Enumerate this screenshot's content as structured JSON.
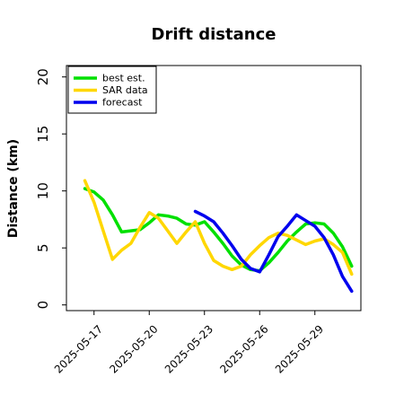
{
  "chart_data": {
    "type": "line",
    "title": "Drift distance",
    "xlabel": "",
    "ylabel": "Distance (km)",
    "ylim": [
      -0.5,
      21
    ],
    "xlim": [
      "2025-05-15T12:00",
      "2025-05-31T12:00"
    ],
    "yticks": [
      0,
      5,
      10,
      15,
      20
    ],
    "xticks": [
      "2025-05-17",
      "2025-05-20",
      "2025-05-23",
      "2025-05-26",
      "2025-05-29"
    ],
    "grid": false,
    "legend_position": "top-left",
    "series": [
      {
        "name": "best est.",
        "color": "#00e000",
        "x": [
          "2025-05-16T12:00",
          "2025-05-17T00:00",
          "2025-05-17T12:00",
          "2025-05-18T00:00",
          "2025-05-18T12:00",
          "2025-05-19T00:00",
          "2025-05-19T12:00",
          "2025-05-20T00:00",
          "2025-05-20T12:00",
          "2025-05-21T00:00",
          "2025-05-21T12:00",
          "2025-05-22T00:00",
          "2025-05-22T12:00",
          "2025-05-23T00:00",
          "2025-05-23T12:00",
          "2025-05-24T00:00",
          "2025-05-24T12:00",
          "2025-05-25T00:00",
          "2025-05-25T12:00",
          "2025-05-26T00:00",
          "2025-05-26T12:00",
          "2025-05-27T00:00",
          "2025-05-27T12:00",
          "2025-05-28T00:00",
          "2025-05-28T12:00",
          "2025-05-29T00:00",
          "2025-05-29T12:00",
          "2025-05-30T00:00",
          "2025-05-30T12:00",
          "2025-05-31T00:00"
        ],
        "values": [
          10.2,
          9.9,
          9.2,
          7.9,
          6.4,
          6.5,
          6.6,
          7.2,
          7.9,
          7.8,
          7.6,
          7.1,
          7.0,
          7.3,
          6.4,
          5.4,
          4.3,
          3.5,
          3.1,
          3.0,
          3.7,
          4.6,
          5.6,
          6.4,
          7.1,
          7.2,
          7.1,
          6.3,
          5.1,
          3.4
        ]
      },
      {
        "name": "SAR data",
        "color": "#ffd700",
        "x": [
          "2025-05-16T12:00",
          "2025-05-17T00:00",
          "2025-05-17T12:00",
          "2025-05-18T00:00",
          "2025-05-18T12:00",
          "2025-05-19T00:00",
          "2025-05-19T12:00",
          "2025-05-20T00:00",
          "2025-05-20T12:00",
          "2025-05-21T00:00",
          "2025-05-21T12:00",
          "2025-05-22T00:00",
          "2025-05-22T12:00",
          "2025-05-23T00:00",
          "2025-05-23T12:00",
          "2025-05-24T00:00",
          "2025-05-24T12:00",
          "2025-05-25T00:00",
          "2025-05-25T12:00",
          "2025-05-26T00:00",
          "2025-05-26T12:00",
          "2025-05-27T00:00",
          "2025-05-27T12:00",
          "2025-05-28T00:00",
          "2025-05-28T12:00",
          "2025-05-29T00:00",
          "2025-05-29T12:00",
          "2025-05-30T00:00",
          "2025-05-30T12:00",
          "2025-05-31T00:00"
        ],
        "values": [
          10.9,
          9.0,
          6.5,
          4.0,
          4.8,
          5.4,
          6.8,
          8.1,
          7.6,
          6.5,
          5.4,
          6.4,
          7.3,
          5.4,
          3.9,
          3.4,
          3.1,
          3.4,
          4.4,
          5.2,
          5.9,
          6.3,
          6.1,
          5.7,
          5.3,
          5.6,
          5.8,
          5.3,
          4.6,
          2.7
        ]
      },
      {
        "name": "forecast",
        "color": "#0000ee",
        "x": [
          "2025-05-22T12:00",
          "2025-05-23T00:00",
          "2025-05-23T12:00",
          "2025-05-24T00:00",
          "2025-05-24T12:00",
          "2025-05-25T00:00",
          "2025-05-25T12:00",
          "2025-05-26T00:00",
          "2025-05-26T12:00",
          "2025-05-27T00:00",
          "2025-05-27T12:00",
          "2025-05-28T00:00",
          "2025-05-28T12:00",
          "2025-05-29T00:00",
          "2025-05-29T12:00",
          "2025-05-30T00:00",
          "2025-05-30T12:00",
          "2025-05-31T00:00"
        ],
        "values": [
          8.2,
          7.8,
          7.3,
          6.3,
          5.2,
          4.0,
          3.2,
          2.9,
          4.4,
          6.0,
          6.9,
          7.9,
          7.4,
          6.9,
          5.9,
          4.4,
          2.5,
          1.2
        ]
      }
    ]
  }
}
